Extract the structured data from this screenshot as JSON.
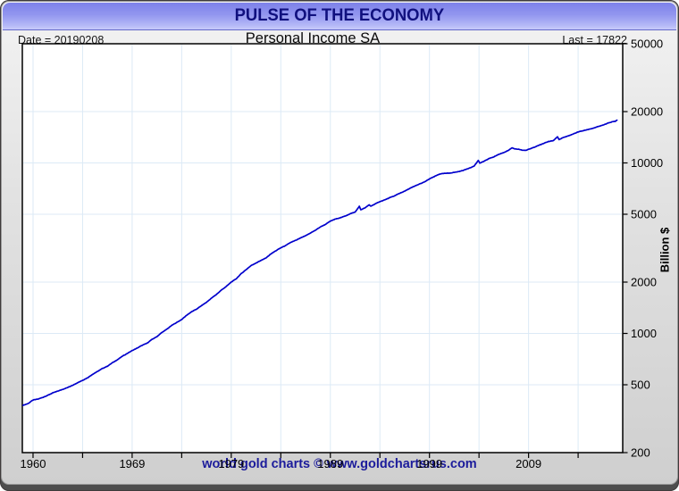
{
  "window": {
    "header_title": "PULSE OF THE ECONOMY",
    "footer_text": "world gold charts © www.goldchartsrus.com"
  },
  "chart_header": {
    "date_label": "Date = 20190208",
    "title": "Personal Income SA",
    "last_label": "Last = 17822"
  },
  "colors": {
    "line": "#0000cc",
    "grid": "#dceaf6",
    "axis": "#000000",
    "header_accent": "#10107e",
    "footer_text": "#1b1b9b"
  },
  "chart_data": {
    "type": "line",
    "title": "Personal Income SA",
    "xlabel": "",
    "ylabel": "Billion $",
    "y_scale": "log",
    "ylim": [
      200,
      50000
    ],
    "xlim": [
      1958.92,
      2019.5
    ],
    "grid": true,
    "legend": "none",
    "date": "20190208",
    "last_value": 17822,
    "y_ticks": [
      200,
      500,
      1000,
      2000,
      5000,
      10000,
      20000,
      50000
    ],
    "y_gridline_values": [
      500,
      1000,
      2000,
      5000,
      10000,
      20000
    ],
    "x_gridline_years": [
      1960,
      1965,
      1970,
      1975,
      1980,
      1985,
      1990,
      1995,
      2000,
      2005,
      2010,
      2015
    ],
    "x_ticks": [
      {
        "label": "1960",
        "at": 1960
      },
      {
        "label": "1969",
        "at": 1970
      },
      {
        "label": "1979",
        "at": 1980
      },
      {
        "label": "1989",
        "at": 1990
      },
      {
        "label": "1999",
        "at": 2000
      },
      {
        "label": "2009",
        "at": 2010
      }
    ],
    "series": [
      {
        "name": "Personal Income SA",
        "color": "#0000cc",
        "points": [
          [
            1959.0,
            379
          ],
          [
            1959.5,
            388
          ],
          [
            1960.0,
            407
          ],
          [
            1960.5,
            412
          ],
          [
            1961.0,
            422
          ],
          [
            1961.5,
            434
          ],
          [
            1962.0,
            448
          ],
          [
            1962.5,
            459
          ],
          [
            1963.0,
            470
          ],
          [
            1963.5,
            482
          ],
          [
            1964.0,
            497
          ],
          [
            1964.5,
            514
          ],
          [
            1965.0,
            531
          ],
          [
            1965.5,
            549
          ],
          [
            1966.0,
            575
          ],
          [
            1966.5,
            598
          ],
          [
            1967.0,
            623
          ],
          [
            1967.5,
            642
          ],
          [
            1968.0,
            673
          ],
          [
            1968.5,
            700
          ],
          [
            1969.0,
            734
          ],
          [
            1969.5,
            763
          ],
          [
            1970.0,
            793
          ],
          [
            1970.5,
            820
          ],
          [
            1971.0,
            851
          ],
          [
            1971.5,
            876
          ],
          [
            1972.0,
            922
          ],
          [
            1972.5,
            958
          ],
          [
            1973.0,
            1013
          ],
          [
            1973.5,
            1059
          ],
          [
            1974.0,
            1115
          ],
          [
            1974.5,
            1160
          ],
          [
            1975.0,
            1207
          ],
          [
            1975.5,
            1278
          ],
          [
            1976.0,
            1340
          ],
          [
            1976.5,
            1388
          ],
          [
            1977.0,
            1456
          ],
          [
            1977.5,
            1523
          ],
          [
            1978.0,
            1610
          ],
          [
            1978.5,
            1692
          ],
          [
            1979.0,
            1795
          ],
          [
            1979.5,
            1886
          ],
          [
            1980.0,
            2001
          ],
          [
            1980.5,
            2092
          ],
          [
            1981.0,
            2241
          ],
          [
            1981.5,
            2367
          ],
          [
            1982.0,
            2499
          ],
          [
            1982.5,
            2590
          ],
          [
            1983.0,
            2679
          ],
          [
            1983.5,
            2770
          ],
          [
            1984.0,
            2927
          ],
          [
            1984.5,
            3054
          ],
          [
            1985.0,
            3179
          ],
          [
            1985.5,
            3279
          ],
          [
            1986.0,
            3420
          ],
          [
            1986.5,
            3513
          ],
          [
            1987.0,
            3632
          ],
          [
            1987.5,
            3740
          ],
          [
            1988.0,
            3885
          ],
          [
            1988.5,
            4030
          ],
          [
            1989.0,
            4217
          ],
          [
            1989.5,
            4357
          ],
          [
            1990.0,
            4557
          ],
          [
            1990.5,
            4683
          ],
          [
            1991.0,
            4769
          ],
          [
            1991.5,
            4880
          ],
          [
            1992.0,
            5034
          ],
          [
            1992.5,
            5146
          ],
          [
            1992.92,
            5565
          ],
          [
            1993.08,
            5310
          ],
          [
            1993.5,
            5450
          ],
          [
            1993.92,
            5680
          ],
          [
            1994.08,
            5580
          ],
          [
            1994.5,
            5740
          ],
          [
            1995.0,
            5935
          ],
          [
            1995.5,
            6075
          ],
          [
            1996.0,
            6255
          ],
          [
            1996.5,
            6420
          ],
          [
            1997.0,
            6640
          ],
          [
            1997.5,
            6830
          ],
          [
            1998.0,
            7085
          ],
          [
            1998.5,
            7305
          ],
          [
            1999.0,
            7525
          ],
          [
            1999.5,
            7730
          ],
          [
            2000.0,
            8060
          ],
          [
            2000.5,
            8320
          ],
          [
            2001.0,
            8600
          ],
          [
            2001.5,
            8680
          ],
          [
            2002.0,
            8710
          ],
          [
            2002.5,
            8800
          ],
          [
            2003.0,
            8910
          ],
          [
            2003.5,
            9080
          ],
          [
            2004.0,
            9320
          ],
          [
            2004.5,
            9570
          ],
          [
            2004.92,
            10320
          ],
          [
            2005.08,
            9980
          ],
          [
            2005.5,
            10220
          ],
          [
            2006.0,
            10600
          ],
          [
            2006.5,
            10860
          ],
          [
            2007.0,
            11230
          ],
          [
            2007.5,
            11510
          ],
          [
            2008.0,
            11860
          ],
          [
            2008.33,
            12270
          ],
          [
            2008.58,
            12070
          ],
          [
            2009.0,
            12030
          ],
          [
            2009.33,
            11880
          ],
          [
            2009.75,
            11850
          ],
          [
            2010.0,
            12010
          ],
          [
            2010.5,
            12320
          ],
          [
            2011.0,
            12680
          ],
          [
            2011.5,
            12980
          ],
          [
            2012.0,
            13350
          ],
          [
            2012.5,
            13520
          ],
          [
            2012.92,
            14230
          ],
          [
            2013.08,
            13700
          ],
          [
            2013.42,
            14030
          ],
          [
            2014.0,
            14390
          ],
          [
            2014.5,
            14780
          ],
          [
            2015.0,
            15200
          ],
          [
            2015.5,
            15440
          ],
          [
            2016.0,
            15700
          ],
          [
            2016.5,
            15970
          ],
          [
            2017.0,
            16320
          ],
          [
            2017.5,
            16650
          ],
          [
            2018.0,
            17100
          ],
          [
            2018.5,
            17480
          ],
          [
            2018.75,
            17550
          ],
          [
            2018.92,
            17822
          ]
        ]
      }
    ]
  }
}
